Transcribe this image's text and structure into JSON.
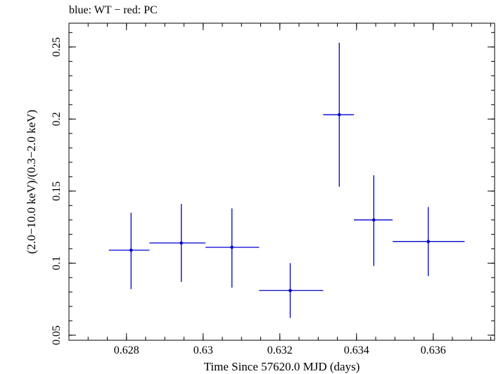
{
  "chart_data": {
    "type": "scatter",
    "title": "blue: WT − red: PC",
    "xlabel": "Time Since 57620.0 MJD (days)",
    "ylabel": "(2.0−10.0 keV)/(0.3−2.0 keV)",
    "xlim": [
      0.6265,
      0.6376
    ],
    "ylim": [
      0.0465,
      0.2665
    ],
    "x_ticks": [
      0.628,
      0.63,
      0.632,
      0.634,
      0.636
    ],
    "x_tick_labels": [
      "0.628",
      "0.63",
      "0.632",
      "0.634",
      "0.636"
    ],
    "y_ticks": [
      0.05,
      0.1,
      0.15,
      0.2,
      0.25
    ],
    "y_tick_labels": [
      "0.05",
      "0.1",
      "0.15",
      "0.2",
      "0.25"
    ],
    "grid": false,
    "series": [
      {
        "color": "#0000cc",
        "points": [
          {
            "x": 0.62812,
            "y": 0.109,
            "xlo": 0.62754,
            "xhi": 0.6286,
            "ylo": 0.082,
            "yhi": 0.135
          },
          {
            "x": 0.62943,
            "y": 0.114,
            "xlo": 0.6286,
            "xhi": 0.63006,
            "ylo": 0.087,
            "yhi": 0.141
          },
          {
            "x": 0.63075,
            "y": 0.111,
            "xlo": 0.63006,
            "xhi": 0.63146,
            "ylo": 0.083,
            "yhi": 0.138
          },
          {
            "x": 0.63227,
            "y": 0.081,
            "xlo": 0.63146,
            "xhi": 0.63313,
            "ylo": 0.062,
            "yhi": 0.1
          },
          {
            "x": 0.63355,
            "y": 0.203,
            "xlo": 0.63313,
            "xhi": 0.63393,
            "ylo": 0.153,
            "yhi": 0.253
          },
          {
            "x": 0.63445,
            "y": 0.13,
            "xlo": 0.63393,
            "xhi": 0.63494,
            "ylo": 0.098,
            "yhi": 0.161
          },
          {
            "x": 0.63587,
            "y": 0.115,
            "xlo": 0.63494,
            "xhi": 0.63682,
            "ylo": 0.091,
            "yhi": 0.139
          }
        ]
      }
    ]
  }
}
